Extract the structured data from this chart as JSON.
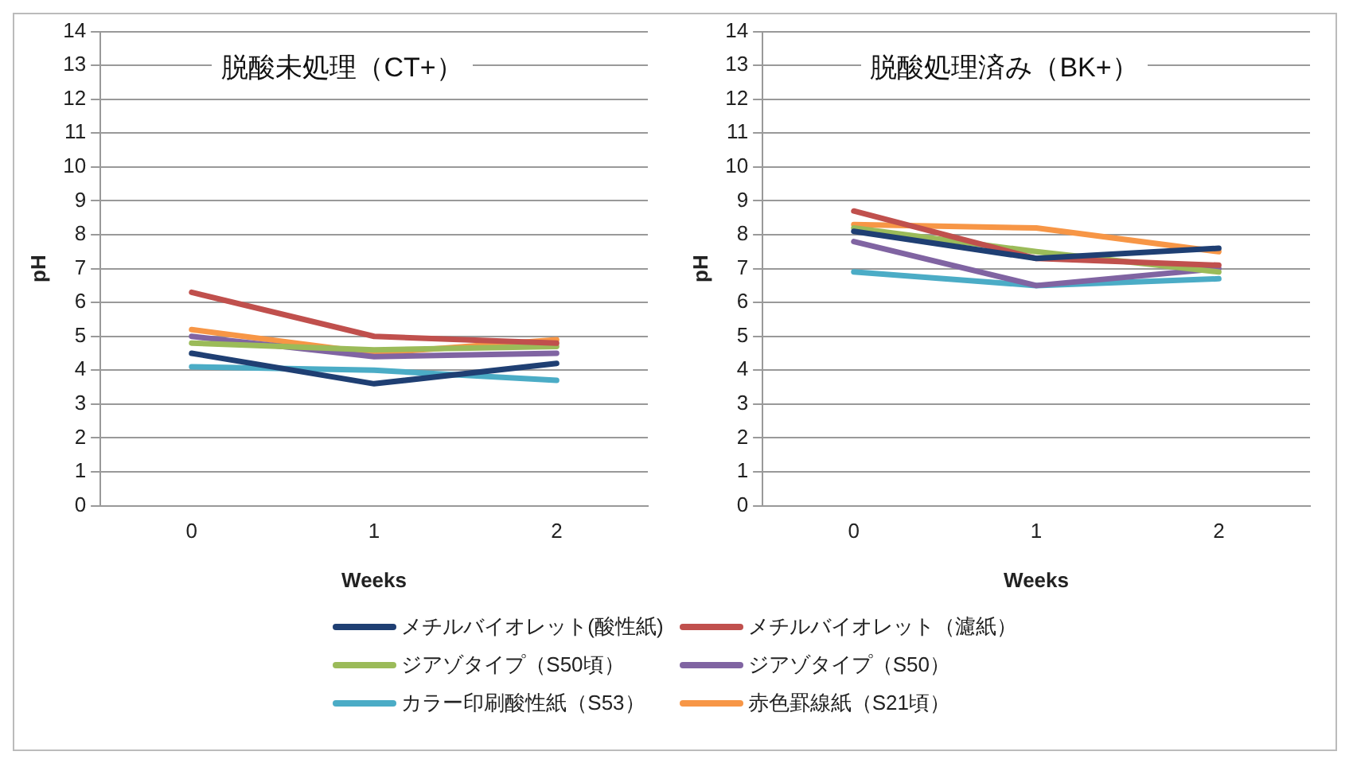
{
  "chart_data": [
    {
      "type": "line",
      "title": "脱酸未処理（CT+）",
      "xlabel": "Weeks",
      "ylabel": "pH",
      "categories": [
        "0",
        "1",
        "2"
      ],
      "ylim": [
        0,
        14
      ],
      "yticks": [
        0,
        1,
        2,
        3,
        4,
        5,
        6,
        7,
        8,
        9,
        10,
        11,
        12,
        13,
        14
      ],
      "grid": "y",
      "legend": "bottom",
      "marker": "none",
      "series": [
        {
          "name": "メチルバイオレット(酸性紙)",
          "color": "#1f3f73",
          "values": [
            4.5,
            3.6,
            4.2
          ]
        },
        {
          "name": "メチルバイオレット（濾紙）",
          "color": "#c0504d",
          "values": [
            6.3,
            5.0,
            4.8
          ]
        },
        {
          "name": "ジアゾタイプ（S50頃）",
          "color": "#9bbb59",
          "values": [
            4.8,
            4.6,
            4.7
          ]
        },
        {
          "name": "ジアゾタイプ（S50）",
          "color": "#8064a2",
          "values": [
            5.0,
            4.4,
            4.5
          ]
        },
        {
          "name": "カラー印刷酸性紙（S53）",
          "color": "#4bacc6",
          "values": [
            4.1,
            4.0,
            3.7
          ]
        },
        {
          "name": "赤色罫線紙（S21頃）",
          "color": "#f79646",
          "values": [
            5.2,
            4.5,
            4.9
          ]
        }
      ]
    },
    {
      "type": "line",
      "title": "脱酸処理済み（BK+）",
      "xlabel": "Weeks",
      "ylabel": "pH",
      "categories": [
        "0",
        "1",
        "2"
      ],
      "ylim": [
        0,
        14
      ],
      "yticks": [
        0,
        1,
        2,
        3,
        4,
        5,
        6,
        7,
        8,
        9,
        10,
        11,
        12,
        13,
        14
      ],
      "grid": "y",
      "marker": "none",
      "series": [
        {
          "color": "#1f3f73",
          "values": [
            8.1,
            7.3,
            7.6
          ]
        },
        {
          "color": "#c0504d",
          "values": [
            8.7,
            7.3,
            7.1
          ]
        },
        {
          "color": "#9bbb59",
          "values": [
            8.2,
            7.5,
            6.9
          ]
        },
        {
          "color": "#8064a2",
          "values": [
            7.8,
            6.5,
            7.0
          ]
        },
        {
          "color": "#4bacc6",
          "values": [
            6.9,
            6.5,
            6.7
          ]
        },
        {
          "color": "#f79646",
          "values": [
            8.3,
            8.2,
            7.5
          ]
        }
      ]
    }
  ]
}
